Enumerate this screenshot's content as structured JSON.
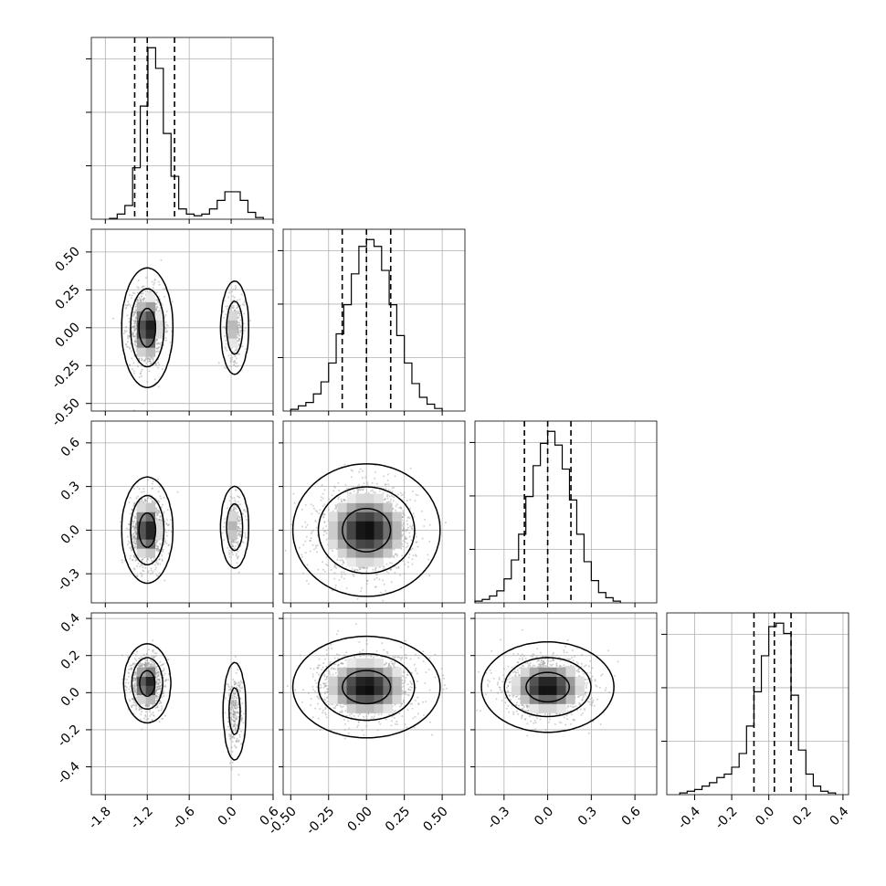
{
  "chart_data": {
    "type": "corner",
    "params": [
      {
        "range": [
          -2.0,
          0.6
        ],
        "ticks": [
          "-1.8",
          "-1.2",
          "-0.6",
          "0.0",
          "0.6"
        ],
        "tick_values": [
          -1.8,
          -1.2,
          -0.6,
          0.0,
          0.6
        ],
        "histogram": {
          "bin_edges": [
            -1.74,
            -1.63,
            -1.52,
            -1.41,
            -1.3,
            -1.19,
            -1.08,
            -0.97,
            -0.86,
            -0.75,
            -0.64,
            -0.53,
            -0.42,
            -0.31,
            -0.2,
            -0.09,
            0.02,
            0.13,
            0.24,
            0.35,
            0.46
          ],
          "counts": [
            0.5,
            3,
            8,
            30,
            66,
            100,
            88,
            50,
            25,
            6,
            3,
            2,
            3,
            6,
            11,
            16,
            16,
            11,
            4,
            1
          ]
        },
        "quantiles": [
          -1.38,
          -1.2,
          -0.81
        ]
      },
      {
        "range": [
          -0.55,
          0.65
        ],
        "ticks": [
          "-0.50",
          "-0.25",
          "0.00",
          "0.25",
          "0.50"
        ],
        "tick_values": [
          -0.5,
          -0.25,
          0.0,
          0.25,
          0.5
        ],
        "histogram": {
          "bin_edges": [
            -0.5,
            -0.45,
            -0.4,
            -0.35,
            -0.3,
            -0.25,
            -0.2,
            -0.15,
            -0.1,
            -0.05,
            0.0,
            0.05,
            0.1,
            0.15,
            0.2,
            0.25,
            0.3,
            0.35,
            0.4,
            0.45,
            0.5
          ],
          "counts": [
            1,
            3,
            5,
            10,
            17,
            28,
            45,
            62,
            80,
            96,
            100,
            96,
            82,
            62,
            44,
            28,
            16,
            8,
            4,
            1.5
          ]
        },
        "quantiles": [
          -0.16,
          0.0,
          0.16
        ]
      },
      {
        "range": [
          -0.5,
          0.75
        ],
        "ticks": [
          "-0.3",
          "0.0",
          "0.3",
          "0.6"
        ],
        "tick_values": [
          -0.3,
          0.0,
          0.3,
          0.6
        ],
        "histogram": {
          "bin_edges": [
            -0.5,
            -0.45,
            -0.4,
            -0.35,
            -0.3,
            -0.25,
            -0.2,
            -0.15,
            -0.1,
            -0.05,
            0.0,
            0.05,
            0.1,
            0.15,
            0.2,
            0.25,
            0.3,
            0.35,
            0.4,
            0.45,
            0.5
          ],
          "counts": [
            1,
            2,
            4,
            7,
            14,
            25,
            40,
            62,
            80,
            93,
            100,
            92,
            78,
            60,
            40,
            24,
            13,
            6,
            3,
            1
          ]
        },
        "quantiles": [
          -0.16,
          0.0,
          0.16
        ]
      },
      {
        "range": [
          -0.55,
          0.43
        ],
        "ticks": [
          "-0.4",
          "-0.2",
          "0.0",
          "0.2",
          "0.4"
        ],
        "tick_values": [
          -0.4,
          -0.2,
          0.0,
          0.2,
          0.4
        ],
        "histogram": {
          "bin_edges": [
            -0.48,
            -0.44,
            -0.4,
            -0.36,
            -0.32,
            -0.28,
            -0.24,
            -0.2,
            -0.16,
            -0.12,
            -0.08,
            -0.04,
            0.0,
            0.04,
            0.08,
            0.12,
            0.16,
            0.2,
            0.24,
            0.28,
            0.32,
            0.36
          ],
          "counts": [
            1,
            2,
            3,
            5,
            7,
            10,
            12,
            16,
            24,
            40,
            60,
            81,
            98,
            100,
            94,
            58,
            26,
            12,
            5,
            2,
            1
          ]
        },
        "quantiles": [
          -0.08,
          0.03,
          0.12
        ]
      }
    ],
    "panels_2d": [
      {
        "x_param": 0,
        "y_param": 1,
        "blobs": [
          {
            "cx": -1.2,
            "cy": 0.0,
            "sx": 0.12,
            "sy": 0.13,
            "weight": 0.8
          },
          {
            "cx": 0.05,
            "cy": 0.0,
            "sx": 0.07,
            "sy": 0.11,
            "weight": 0.2
          }
        ]
      },
      {
        "x_param": 0,
        "y_param": 2,
        "blobs": [
          {
            "cx": -1.2,
            "cy": 0.0,
            "sx": 0.12,
            "sy": 0.12,
            "weight": 0.8
          },
          {
            "cx": 0.05,
            "cy": 0.02,
            "sx": 0.07,
            "sy": 0.1,
            "weight": 0.2
          }
        ]
      },
      {
        "x_param": 1,
        "y_param": 2,
        "blobs": [
          {
            "cx": 0.0,
            "cy": 0.0,
            "sx": 0.16,
            "sy": 0.15,
            "weight": 1.0
          }
        ]
      },
      {
        "x_param": 0,
        "y_param": 3,
        "blobs": [
          {
            "cx": -1.2,
            "cy": 0.05,
            "sx": 0.11,
            "sy": 0.07,
            "weight": 0.8
          },
          {
            "cx": 0.05,
            "cy": -0.1,
            "sx": 0.06,
            "sy": 0.1,
            "weight": 0.2
          }
        ]
      },
      {
        "x_param": 1,
        "y_param": 3,
        "blobs": [
          {
            "cx": 0.0,
            "cy": 0.03,
            "sx": 0.16,
            "sy": 0.09,
            "weight": 1.0
          }
        ]
      },
      {
        "x_param": 2,
        "y_param": 3,
        "blobs": [
          {
            "cx": 0.0,
            "cy": 0.03,
            "sx": 0.15,
            "sy": 0.08,
            "weight": 1.0
          }
        ]
      }
    ],
    "contour_levels": [
      0.39,
      0.86,
      0.99
    ],
    "grid": true,
    "colors": {
      "line": "#000000",
      "grid": "#b0b0b0",
      "points": "#9a9a9a"
    }
  }
}
